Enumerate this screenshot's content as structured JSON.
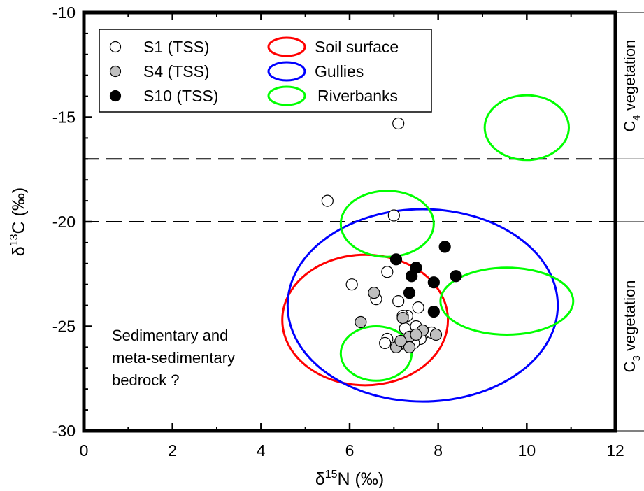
{
  "chart_data": {
    "type": "scatter",
    "xlabel_main": "δ",
    "xlabel_sup": "15",
    "xlabel_rest": "N (‰)",
    "ylabel_main": "δ",
    "ylabel_sup": "13",
    "ylabel_rest": "C (‰)",
    "xlim": [
      0,
      12
    ],
    "ylim": [
      -30,
      -10
    ],
    "xticks": [
      0,
      2,
      4,
      6,
      8,
      10,
      12
    ],
    "yticks": [
      -10,
      -15,
      -20,
      -25,
      -30
    ],
    "thresholds": [
      -17,
      -20
    ],
    "zones": [
      {
        "base": "C",
        "sub": "4",
        "rest": " vegetation",
        "y_range": [
          -17,
          -10
        ]
      },
      {
        "base": "C",
        "sub": "3",
        "rest": " vegetation",
        "y_range": [
          -30,
          -20
        ]
      }
    ],
    "series": [
      {
        "name": "S1 (TSS)",
        "marker": "open",
        "fill": "#ffffff",
        "points": [
          [
            7.1,
            -15.3
          ],
          [
            5.5,
            -19.0
          ],
          [
            7.0,
            -19.7
          ],
          [
            6.85,
            -22.4
          ],
          [
            6.05,
            -23.0
          ],
          [
            6.6,
            -23.7
          ],
          [
            7.1,
            -23.8
          ],
          [
            7.55,
            -24.1
          ],
          [
            7.3,
            -24.5
          ],
          [
            7.2,
            -24.5
          ],
          [
            7.5,
            -25.0
          ],
          [
            7.25,
            -25.1
          ],
          [
            7.7,
            -25.3
          ],
          [
            7.85,
            -25.3
          ],
          [
            7.4,
            -25.5
          ],
          [
            7.6,
            -25.6
          ],
          [
            7.45,
            -25.8
          ],
          [
            6.85,
            -25.6
          ],
          [
            6.8,
            -25.8
          ]
        ]
      },
      {
        "name": "S4 (TSS)",
        "marker": "grey",
        "fill": "#bfbfbf",
        "points": [
          [
            6.55,
            -23.4
          ],
          [
            6.25,
            -24.8
          ],
          [
            7.2,
            -24.6
          ],
          [
            7.65,
            -25.2
          ],
          [
            7.35,
            -25.5
          ],
          [
            7.95,
            -25.4
          ],
          [
            7.1,
            -25.9
          ],
          [
            7.05,
            -26.0
          ],
          [
            7.35,
            -26.0
          ],
          [
            7.15,
            -25.7
          ],
          [
            7.5,
            -25.4
          ]
        ]
      },
      {
        "name": "S10 (TSS)",
        "marker": "filled",
        "fill": "#000000",
        "points": [
          [
            7.05,
            -21.8
          ],
          [
            8.15,
            -21.2
          ],
          [
            7.5,
            -22.2
          ],
          [
            7.4,
            -22.6
          ],
          [
            8.4,
            -22.6
          ],
          [
            7.9,
            -22.9
          ],
          [
            7.35,
            -23.4
          ],
          [
            7.9,
            -24.3
          ]
        ]
      }
    ],
    "ellipses": [
      {
        "name": "Soil surface",
        "color": "#ff0000",
        "cx": 6.35,
        "cy": -24.7,
        "rx": 1.87,
        "ry": 3.12
      },
      {
        "name": "Gullies",
        "color": "#0000ff",
        "cx": 7.65,
        "cy": -24.0,
        "rx": 3.05,
        "ry": 4.6
      },
      {
        "name": "Riverbanks",
        "color": "#00ff00",
        "cx": 6.85,
        "cy": -20.1,
        "rx": 1.05,
        "ry": 1.58
      },
      {
        "name": "Riverbanks",
        "color": "#00ff00",
        "cx": 9.55,
        "cy": -23.8,
        "rx": 1.5,
        "ry": 1.6
      },
      {
        "name": "Riverbanks",
        "color": "#00ff00",
        "cx": 6.6,
        "cy": -26.3,
        "rx": 0.8,
        "ry": 1.3
      },
      {
        "name": "Riverbanks",
        "color": "#00ff00",
        "cx": 10.0,
        "cy": -15.5,
        "rx": 0.95,
        "ry": 1.55
      }
    ],
    "legend": {
      "position": "top-left",
      "markers": [
        {
          "label": "S1 (TSS)",
          "fill": "#ffffff"
        },
        {
          "label": "S4 (TSS)",
          "fill": "#bfbfbf"
        },
        {
          "label": "S10 (TSS)",
          "fill": "#000000"
        }
      ],
      "ellipses": [
        {
          "label": "Soil surface",
          "color": "#ff0000"
        },
        {
          "label": "Gullies",
          "color": "#0000ff"
        },
        {
          "label": "Riverbanks",
          "color": "#00ff00"
        }
      ]
    },
    "annotation": [
      "Sedimentary and",
      "meta-sedimentary",
      "bedrock ?"
    ]
  }
}
